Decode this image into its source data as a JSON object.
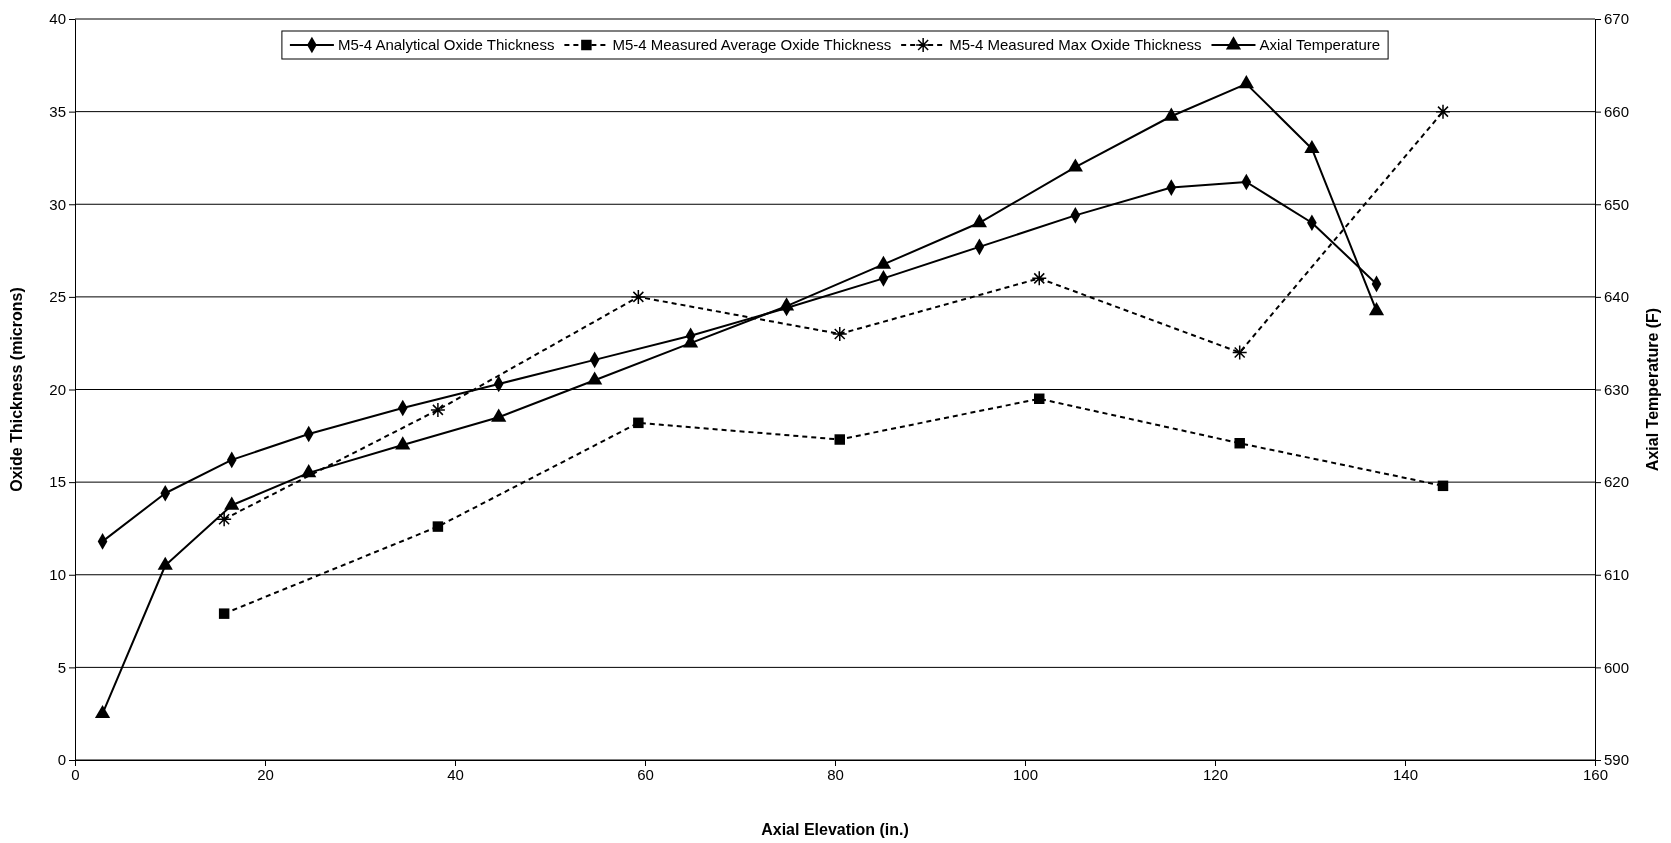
{
  "chart_data": {
    "type": "line",
    "xlabel": "Axial Elevation (in.)",
    "ylabel": "Oxide Thickness (microns)",
    "y2label": "Axial Temperature (F)",
    "xlim": [
      0,
      160
    ],
    "xticks": [
      0,
      20,
      40,
      60,
      80,
      100,
      120,
      140,
      160
    ],
    "ylim": [
      0,
      40
    ],
    "yticks": [
      0,
      5,
      10,
      15,
      20,
      25,
      30,
      35,
      40
    ],
    "y2lim": [
      590,
      670
    ],
    "y2ticks": [
      590,
      600,
      610,
      620,
      630,
      640,
      650,
      660,
      670
    ],
    "grid": "y",
    "legend": "top",
    "series": [
      {
        "name": "M5-4 Analytical Oxide Thickness",
        "color": "#000000",
        "marker": "diamond",
        "line_style": "solid",
        "x": [
          2.9,
          9.5,
          16.5,
          24.6,
          34.5,
          44.6,
          54.7,
          64.8,
          74.9,
          85.1,
          95.2,
          105.3,
          115.4,
          123.3,
          130.2,
          137
        ],
        "values": [
          11.8,
          14.4,
          16.2,
          17.6,
          19.0,
          20.3,
          21.6,
          22.9,
          24.4,
          26.0,
          27.7,
          29.4,
          30.9,
          31.2,
          29.0,
          25.7
        ]
      },
      {
        "name": "M5-4 Measured Average Oxide Thickness",
        "color": "#000000",
        "marker": "square",
        "line_style": "dashed",
        "x": [
          15.7,
          38.2,
          59.3,
          80.5,
          101.5,
          122.6,
          144
        ],
        "values": [
          7.9,
          12.6,
          18.2,
          17.3,
          19.5,
          17.1,
          14.8
        ]
      },
      {
        "name": "M5-4 Measured Max Oxide Thickness",
        "color": "#000000",
        "marker": "cross",
        "line_style": "dashed",
        "x": [
          15.7,
          38.2,
          59.3,
          80.5,
          101.5,
          122.6,
          144
        ],
        "values": [
          13.0,
          18.9,
          25.0,
          23.0,
          26.0,
          22.0,
          35.0
        ]
      },
      {
        "name": "Axial Temperature",
        "color": "#000000",
        "marker": "triangle",
        "line_style": "solid",
        "axis": "y2",
        "x": [
          2.9,
          9.5,
          16.5,
          24.6,
          34.5,
          44.6,
          54.7,
          64.8,
          74.9,
          85.1,
          95.2,
          105.3,
          115.4,
          123.3,
          130.2,
          137
        ],
        "values": [
          595,
          611,
          617.5,
          621,
          624,
          627,
          631,
          635,
          639,
          643.5,
          648,
          654,
          659.5,
          663,
          656,
          638.5
        ]
      }
    ]
  }
}
